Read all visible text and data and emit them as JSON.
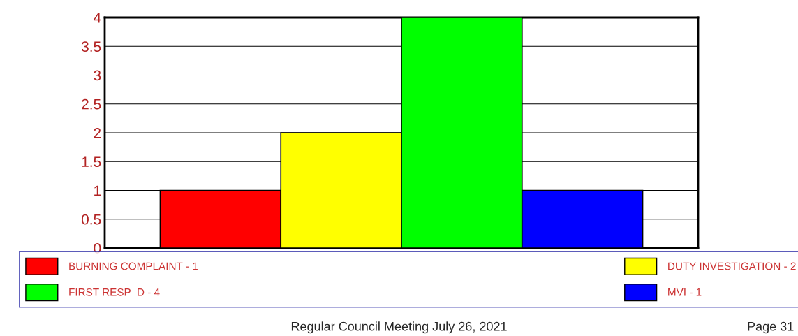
{
  "chart_data": {
    "type": "bar",
    "categories": [
      null,
      null,
      null,
      null
    ],
    "series": [
      {
        "name": "BURNING COMPLAINT - 1",
        "color": "#ff0000",
        "values": [
          1,
          null,
          null,
          null
        ]
      },
      {
        "name": "DUTY INVESTIGATION - 2",
        "color": "#ffff00",
        "values": [
          null,
          2,
          null,
          null
        ]
      },
      {
        "name": "FIRST RESP  D - 4",
        "color": "#00ff00",
        "values": [
          null,
          null,
          4,
          null
        ]
      },
      {
        "name": "MVI - 1",
        "color": "#0000ff",
        "values": [
          null,
          null,
          null,
          1
        ]
      }
    ],
    "ylim": [
      0,
      4
    ],
    "yticks": [
      0,
      0.5,
      1,
      1.5,
      2,
      2.5,
      3,
      3.5,
      4
    ],
    "grid": "y",
    "legend": "bottom",
    "annotations": [
      "Regular Council Meeting July 26, 2021",
      "Page 31"
    ]
  }
}
